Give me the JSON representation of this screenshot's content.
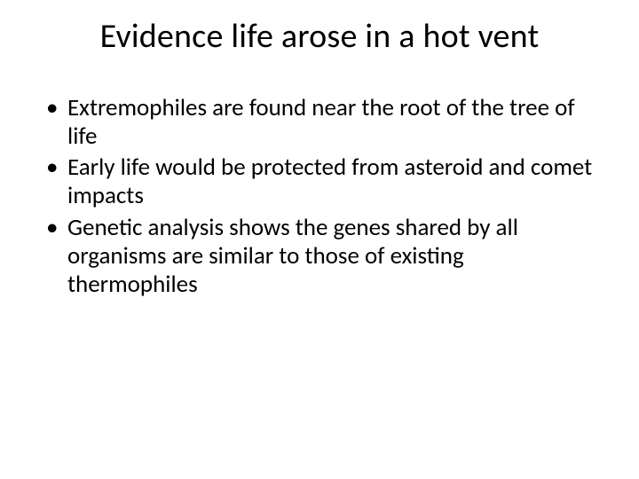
{
  "title": "Evidence life arose in a hot vent",
  "bullets": [
    "Extremophiles are found near the root of the tree of life",
    "Early life would be protected from asteroid and comet impacts",
    "Genetic analysis shows the genes shared by all organisms are similar to those of existing thermophiles"
  ]
}
